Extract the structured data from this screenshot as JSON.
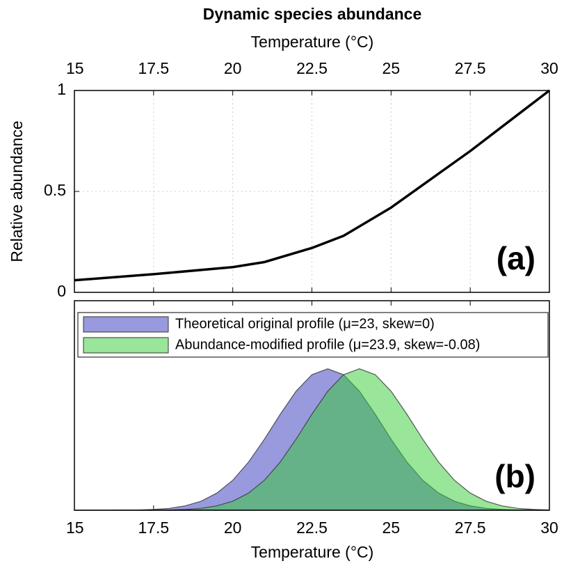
{
  "chart_data": [
    {
      "type": "line",
      "title": "Dynamic species abundance",
      "x_label": "Temperature (°C)",
      "y_label": "Relative abundance",
      "annotation": "(a)",
      "xlim": [
        15,
        30
      ],
      "xticks": [
        15,
        17.5,
        20,
        22.5,
        25,
        27.5,
        30
      ],
      "ylim": [
        0,
        1
      ],
      "yticks": [
        0,
        0.5,
        1
      ],
      "grid": true,
      "color": "#000000",
      "x": [
        15,
        17.5,
        20,
        21,
        22.5,
        23.5,
        25,
        27.5,
        30
      ],
      "values": [
        0.06,
        0.09,
        0.125,
        0.15,
        0.22,
        0.28,
        0.42,
        0.7,
        1
      ]
    },
    {
      "type": "area",
      "x_label": "Temperature (°C)",
      "annotation": "(b)",
      "legend": "top",
      "xlim": [
        15,
        30
      ],
      "xticks": [
        15,
        17.5,
        20,
        22.5,
        25,
        27.5,
        30
      ],
      "ylim": [
        0,
        1
      ],
      "x": [
        15,
        15.5,
        16,
        16.5,
        17,
        17.5,
        18,
        18.5,
        19,
        19.5,
        20,
        20.5,
        21,
        21.5,
        22,
        22.5,
        23,
        23.5,
        24,
        24.5,
        25,
        25.5,
        26,
        26.5,
        27,
        27.5,
        28,
        28.5,
        29,
        29.5,
        30
      ],
      "series": [
        {
          "name": "Theoretical original profile (μ=23, skew=0)",
          "color": "#9999dd",
          "values": [
            0,
            0,
            0,
            0.001,
            0.001,
            0.004,
            0.009,
            0.021,
            0.043,
            0.082,
            0.143,
            0.23,
            0.339,
            0.458,
            0.568,
            0.647,
            0.675,
            0.647,
            0.568,
            0.458,
            0.339,
            0.23,
            0.143,
            0.082,
            0.043,
            0.021,
            0.009,
            0.004,
            0.001,
            0.001,
            0
          ]
        },
        {
          "name": "Abundance-modified profile (μ=23.9, skew=-0.08)",
          "color": "#33cc33",
          "values": [
            0,
            0,
            0,
            0,
            0,
            0.001,
            0.001,
            0.004,
            0.009,
            0.021,
            0.043,
            0.082,
            0.143,
            0.23,
            0.339,
            0.458,
            0.568,
            0.647,
            0.675,
            0.647,
            0.568,
            0.458,
            0.339,
            0.23,
            0.143,
            0.082,
            0.043,
            0.021,
            0.009,
            0.004,
            0.001
          ]
        }
      ]
    }
  ]
}
